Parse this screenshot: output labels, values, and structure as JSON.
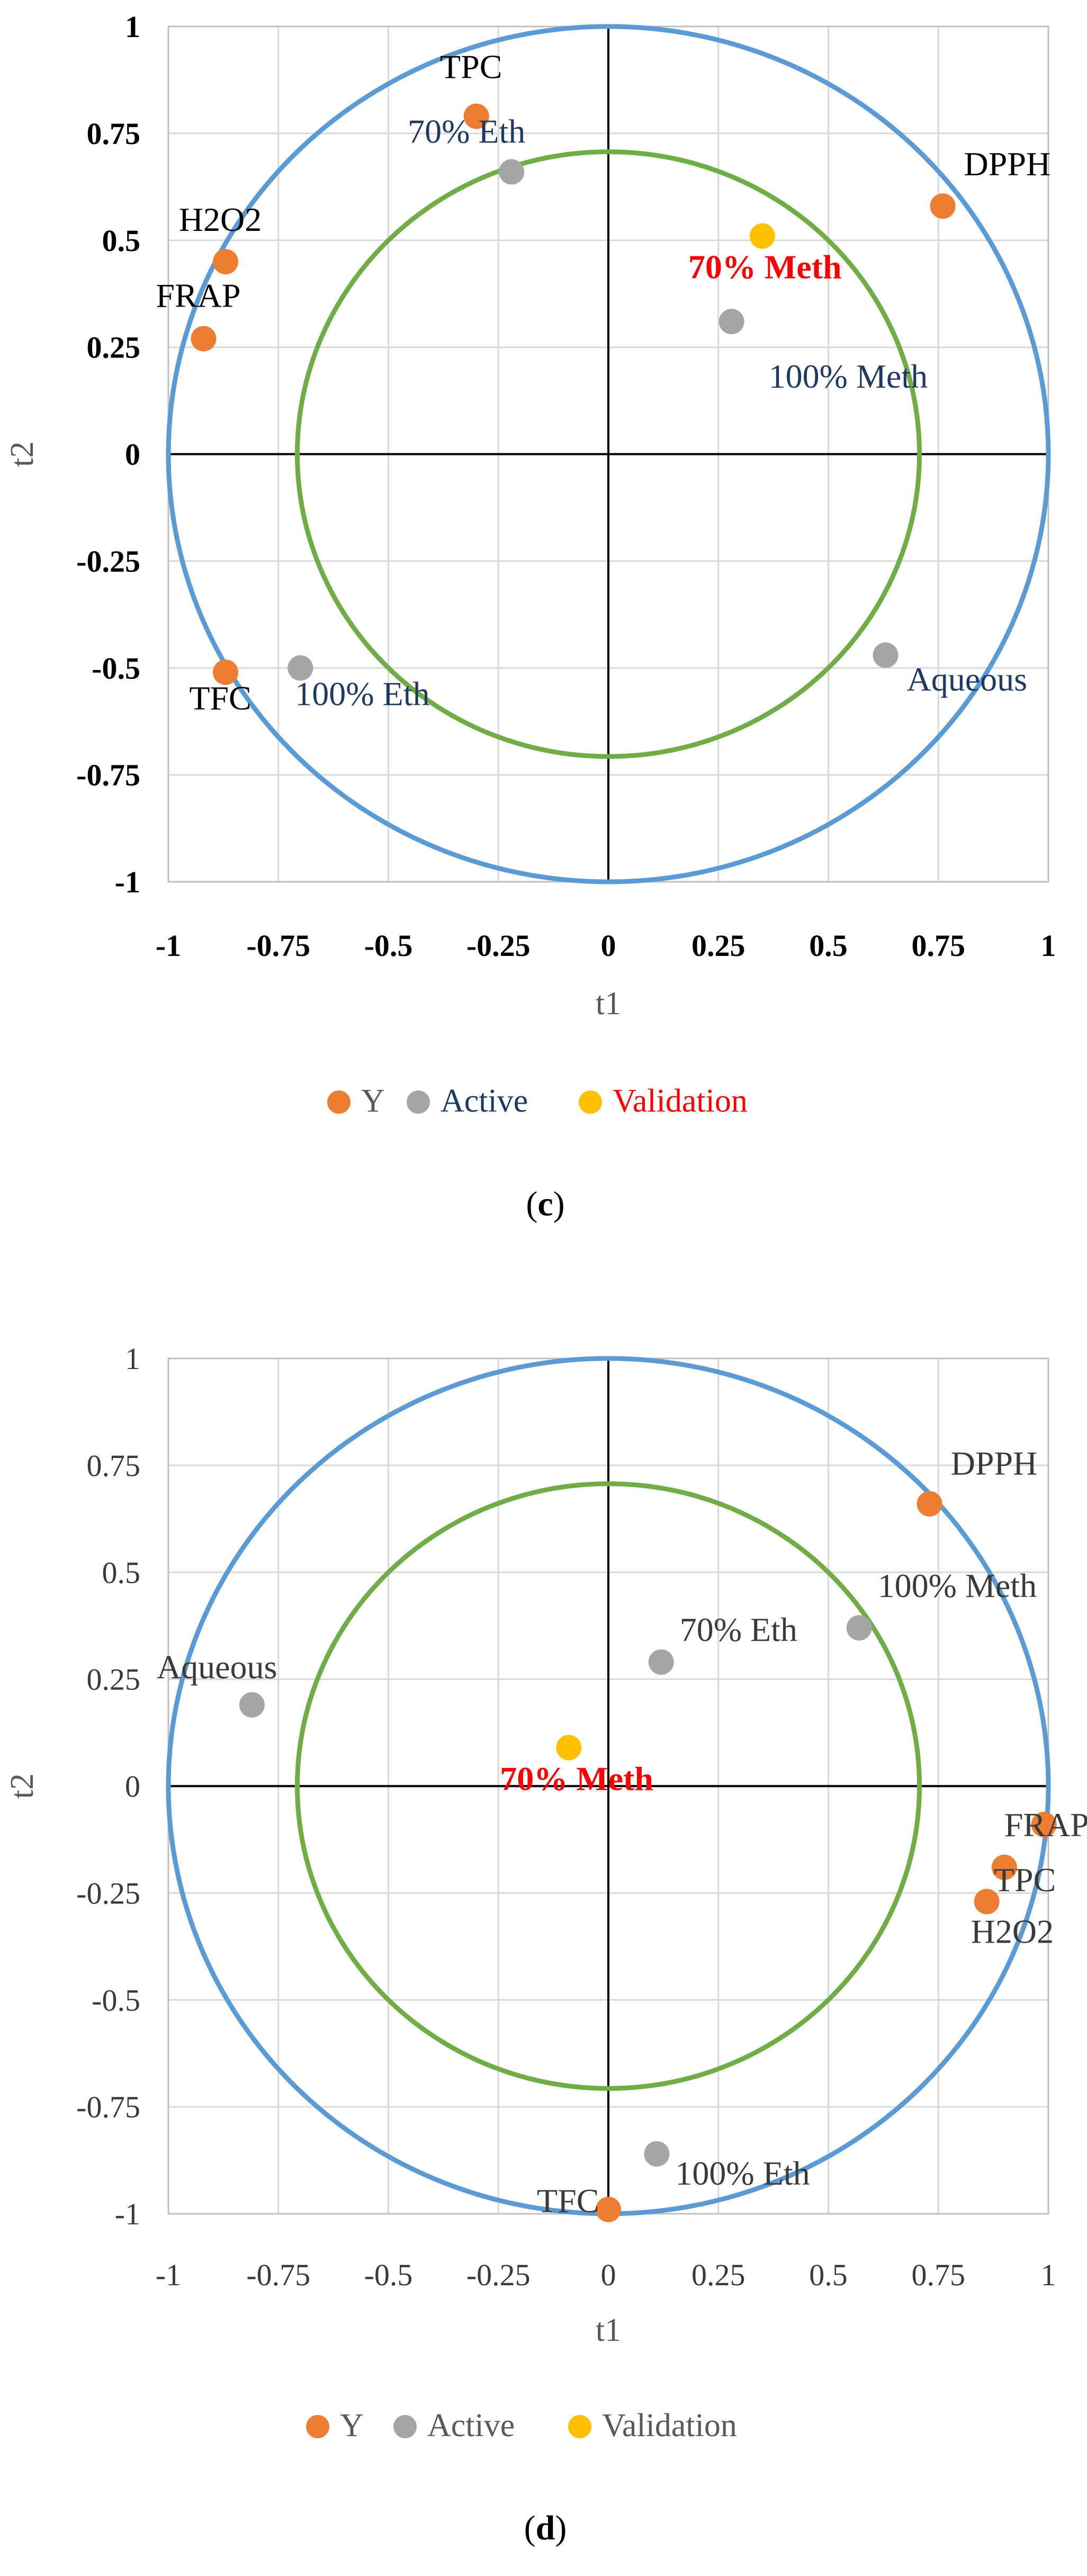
{
  "chart_data": [
    {
      "panel": "c",
      "caption": "(c)",
      "caption_prefix": "(",
      "caption_letter": "c",
      "caption_suffix": ")",
      "type": "scatter",
      "xlabel": "t1",
      "ylabel": "t2",
      "xlim": [
        -1,
        1
      ],
      "ylim": [
        -1,
        1
      ],
      "xticks": [
        "-1",
        "-0.75",
        "-0.5",
        "-0.25",
        "0",
        "0.25",
        "0.5",
        "0.75",
        "1"
      ],
      "yticks": [
        "1",
        "0.75",
        "0.5",
        "0.25",
        "0",
        "-0.25",
        "-0.5",
        "-0.75",
        "-1"
      ],
      "grid": true,
      "circles": [
        {
          "name": "unit circle",
          "radius": 1,
          "color": "#5B9BD5"
        },
        {
          "name": "inner circle",
          "radius": 0.707,
          "color": "#70AD47"
        }
      ],
      "series": [
        {
          "name": "Y",
          "color": "#ED7D31",
          "points": [
            {
              "label": "TPC",
              "x": -0.3,
              "y": 0.79,
              "label_color": "#000000",
              "label_bold": false
            },
            {
              "label": "DPPH",
              "x": 0.76,
              "y": 0.58,
              "label_color": "#000000",
              "label_bold": false
            },
            {
              "label": "H2O2",
              "x": -0.87,
              "y": 0.45,
              "label_color": "#000000",
              "label_bold": false
            },
            {
              "label": "FRAP",
              "x": -0.92,
              "y": 0.27,
              "label_color": "#000000",
              "label_bold": false
            },
            {
              "label": "TFC",
              "x": -0.87,
              "y": -0.51,
              "label_color": "#000000",
              "label_bold": false
            }
          ]
        },
        {
          "name": "Active",
          "color": "#A5A5A5",
          "points": [
            {
              "label": "70% Eth",
              "x": -0.22,
              "y": 0.66,
              "label_color": "#1F3864",
              "label_bold": false
            },
            {
              "label": "100% Meth",
              "x": 0.28,
              "y": 0.31,
              "label_color": "#1F3864",
              "label_bold": false
            },
            {
              "label": "100% Eth",
              "x": -0.7,
              "y": -0.5,
              "label_color": "#1F3864",
              "label_bold": false
            },
            {
              "label": "Aqueous",
              "x": 0.63,
              "y": -0.47,
              "label_color": "#1F3864",
              "label_bold": false
            }
          ]
        },
        {
          "name": "Validation",
          "color": "#FFC000",
          "points": [
            {
              "label": "70% Meth",
              "x": 0.35,
              "y": 0.51,
              "label_color": "#FF0000",
              "label_bold": true
            }
          ]
        }
      ],
      "legend": {
        "position": "bottom",
        "entries": [
          {
            "label": "Y",
            "color": "#ED7D31",
            "text_color": "#595959"
          },
          {
            "label": "Active",
            "color": "#A5A5A5",
            "text_color": "#1F3864"
          },
          {
            "label": "Validation",
            "color": "#FFC000",
            "text_color": "#FF0000"
          }
        ]
      }
    },
    {
      "panel": "d",
      "caption": "(d)",
      "caption_prefix": "(",
      "caption_letter": "d",
      "caption_suffix": ")",
      "type": "scatter",
      "xlabel": "t1",
      "ylabel": "t2",
      "xlim": [
        -1,
        1
      ],
      "ylim": [
        -1,
        1
      ],
      "xticks": [
        "-1",
        "-0.75",
        "-0.5",
        "-0.25",
        "0",
        "0.25",
        "0.5",
        "0.75",
        "1"
      ],
      "yticks": [
        "1",
        "0.75",
        "0.5",
        "0.25",
        "0",
        "-0.25",
        "-0.5",
        "-0.75",
        "-1"
      ],
      "grid": true,
      "circles": [
        {
          "name": "unit circle",
          "radius": 1,
          "color": "#5B9BD5"
        },
        {
          "name": "inner circle",
          "radius": 0.707,
          "color": "#70AD47"
        }
      ],
      "series": [
        {
          "name": "Y",
          "color": "#ED7D31",
          "points": [
            {
              "label": "DPPH",
              "x": 0.73,
              "y": 0.66,
              "label_color": "#3a3a3a",
              "label_bold": false
            },
            {
              "label": "FRAP",
              "x": 0.99,
              "y": -0.09,
              "label_color": "#3a3a3a",
              "label_bold": false
            },
            {
              "label": "TPC",
              "x": 0.9,
              "y": -0.19,
              "label_color": "#3a3a3a",
              "label_bold": false
            },
            {
              "label": "H2O2",
              "x": 0.86,
              "y": -0.27,
              "label_color": "#3a3a3a",
              "label_bold": false
            },
            {
              "label": "TFC",
              "x": 0.0,
              "y": -0.99,
              "label_color": "#3a3a3a",
              "label_bold": false
            }
          ]
        },
        {
          "name": "Active",
          "color": "#A5A5A5",
          "points": [
            {
              "label": "Aqueous",
              "x": -0.81,
              "y": 0.19,
              "label_color": "#3a3a3a",
              "label_bold": false
            },
            {
              "label": "70% Eth",
              "x": 0.12,
              "y": 0.29,
              "label_color": "#3a3a3a",
              "label_bold": false
            },
            {
              "label": "100% Meth",
              "x": 0.57,
              "y": 0.37,
              "label_color": "#3a3a3a",
              "label_bold": false
            },
            {
              "label": "100% Eth",
              "x": 0.11,
              "y": -0.86,
              "label_color": "#3a3a3a",
              "label_bold": false
            }
          ]
        },
        {
          "name": "Validation",
          "color": "#FFC000",
          "points": [
            {
              "label": "70% Meth",
              "x": -0.09,
              "y": 0.09,
              "label_color": "#FF0000",
              "label_bold": true
            }
          ]
        }
      ],
      "legend": {
        "position": "bottom",
        "entries": [
          {
            "label": "Y",
            "color": "#ED7D31",
            "text_color": "#595959"
          },
          {
            "label": "Active",
            "color": "#A5A5A5",
            "text_color": "#595959"
          },
          {
            "label": "Validation",
            "color": "#FFC000",
            "text_color": "#595959"
          }
        ]
      }
    }
  ]
}
